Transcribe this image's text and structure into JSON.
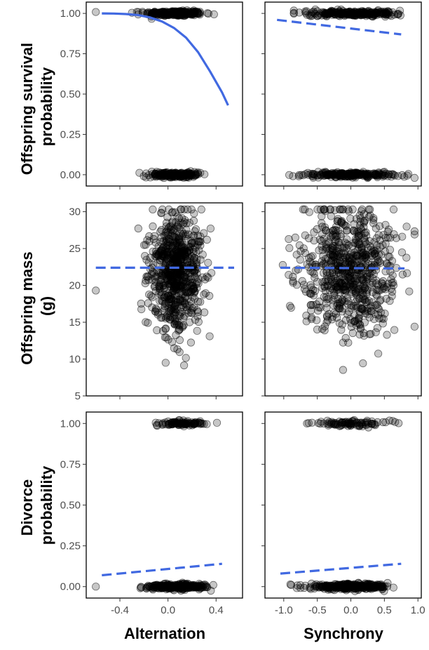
{
  "figure": {
    "row_titles": [
      [
        "Offspring survival",
        "probability"
      ],
      [
        "Offspring mass",
        "(g)"
      ],
      [
        "Divorce",
        "probability"
      ]
    ],
    "col_titles": [
      "Alternation",
      "Synchrony"
    ]
  },
  "chart_data": [
    {
      "type": "scatter",
      "row": 0,
      "col": 0,
      "xlabel": "",
      "ylabel": "Offspring survival probability",
      "xlim": [
        -0.68,
        0.62
      ],
      "ylim": [
        -0.07,
        1.07
      ],
      "xticks": [
        -0.4,
        0.0,
        0.4
      ],
      "xticklabels": [
        "-0.4",
        "0.0",
        "0.4"
      ],
      "show_xticklabels": false,
      "yticks": [
        0,
        0.25,
        0.5,
        0.75,
        1.0
      ],
      "yticklabels": [
        "0.00",
        "0.25",
        "0.50",
        "0.75",
        "1.00"
      ],
      "fit": {
        "style": "solid",
        "color": "#4169e1",
        "x": [
          -0.55,
          -0.45,
          -0.35,
          -0.25,
          -0.15,
          -0.05,
          0.05,
          0.15,
          0.25,
          0.35,
          0.45,
          0.5
        ],
        "y": [
          1.0,
          0.999,
          0.996,
          0.99,
          0.975,
          0.95,
          0.91,
          0.85,
          0.76,
          0.64,
          0.51,
          0.43
        ]
      },
      "points": {
        "note": "binary outcome (0/1), jittered",
        "clusters": [
          {
            "y": 1.0,
            "n": 260,
            "x_mean": 0.05,
            "x_sd": 0.12,
            "x_min": -0.3,
            "x_max": 0.5
          },
          {
            "y": 1.0,
            "n": 1,
            "x_fixed": -0.6
          },
          {
            "y": 0.0,
            "n": 200,
            "x_mean": 0.05,
            "x_sd": 0.1,
            "x_min": -0.28,
            "x_max": 0.48
          }
        ]
      }
    },
    {
      "type": "scatter",
      "row": 0,
      "col": 1,
      "xlabel": "",
      "ylabel": "",
      "xlim": [
        -1.28,
        1.05
      ],
      "ylim": [
        -0.07,
        1.07
      ],
      "xticks": [
        -1.0,
        -0.5,
        0.0,
        0.5,
        1.0
      ],
      "xticklabels": [
        "-1.0",
        "-0.5",
        "0.0",
        "0.5",
        "1.0"
      ],
      "show_xticklabels": false,
      "yticks": [
        0,
        0.25,
        0.5,
        0.75,
        1.0
      ],
      "yticklabels": [
        "0.00",
        "0.25",
        "0.50",
        "0.75",
        "1.00"
      ],
      "show_yticklabels": false,
      "fit": {
        "style": "dashed",
        "color": "#4169e1",
        "x": [
          -1.1,
          0.75
        ],
        "y": [
          0.96,
          0.87
        ]
      },
      "points": {
        "note": "binary outcome (0/1), jittered",
        "clusters": [
          {
            "y": 1.0,
            "n": 260,
            "x_mean": 0.0,
            "x_sd": 0.35,
            "x_min": -0.85,
            "x_max": 0.85
          },
          {
            "y": 0.0,
            "n": 220,
            "x_mean": 0.0,
            "x_sd": 0.35,
            "x_min": -1.2,
            "x_max": 0.95
          }
        ]
      }
    },
    {
      "type": "scatter",
      "row": 1,
      "col": 0,
      "xlabel": "",
      "ylabel": "Offspring mass (g)",
      "xlim": [
        -0.68,
        0.62
      ],
      "ylim": [
        5,
        31.2
      ],
      "xticks": [
        -0.4,
        0.0,
        0.4
      ],
      "xticklabels": [
        "-0.4",
        "0.0",
        "0.4"
      ],
      "show_xticklabels": false,
      "yticks": [
        5,
        10,
        15,
        20,
        25,
        30
      ],
      "yticklabels": [
        "5",
        "10",
        "15",
        "20",
        "25",
        "30"
      ],
      "fit": {
        "style": "dashed",
        "color": "#4169e1",
        "x": [
          -0.6,
          0.55
        ],
        "y": [
          22.4,
          22.4
        ]
      },
      "points": {
        "note": "continuous outcome",
        "clusters": [
          {
            "n": 700,
            "x_mean": 0.07,
            "x_sd": 0.11,
            "x_min": -0.35,
            "x_max": 0.5,
            "y_mean": 22.0,
            "y_sd": 4.0,
            "y_min": 6,
            "y_max": 30.3
          },
          {
            "n": 1,
            "x_fixed": -0.6,
            "y_fixed": 19.3
          }
        ]
      }
    },
    {
      "type": "scatter",
      "row": 1,
      "col": 1,
      "xlabel": "",
      "ylabel": "",
      "xlim": [
        -1.28,
        1.05
      ],
      "ylim": [
        5,
        31.2
      ],
      "xticks": [
        -1.0,
        -0.5,
        0.0,
        0.5,
        1.0
      ],
      "xticklabels": [
        "-1.0",
        "-0.5",
        "0.0",
        "0.5",
        "1.0"
      ],
      "show_xticklabels": false,
      "yticks": [
        5,
        10,
        15,
        20,
        25,
        30
      ],
      "yticklabels": [
        "5",
        "10",
        "15",
        "20",
        "25",
        "30"
      ],
      "show_yticklabels": false,
      "fit": {
        "style": "dashed",
        "color": "#4169e1",
        "x": [
          -1.05,
          0.8
        ],
        "y": [
          22.4,
          22.3
        ]
      },
      "points": {
        "note": "continuous outcome",
        "clusters": [
          {
            "n": 700,
            "x_mean": 0.0,
            "x_sd": 0.35,
            "x_min": -1.15,
            "x_max": 0.95,
            "y_mean": 22.0,
            "y_sd": 4.2,
            "y_min": 6,
            "y_max": 30.3
          }
        ]
      }
    },
    {
      "type": "scatter",
      "row": 2,
      "col": 0,
      "xlabel": "Alternation",
      "ylabel": "Divorce probability",
      "xlim": [
        -0.68,
        0.62
      ],
      "ylim": [
        -0.07,
        1.07
      ],
      "xticks": [
        -0.4,
        0.0,
        0.4
      ],
      "xticklabels": [
        "-0.4",
        "0.0",
        "0.4"
      ],
      "show_xticklabels": true,
      "yticks": [
        0,
        0.25,
        0.5,
        0.75,
        1.0
      ],
      "yticklabels": [
        "0.00",
        "0.25",
        "0.50",
        "0.75",
        "1.00"
      ],
      "fit": {
        "style": "dashed",
        "color": "#4169e1",
        "x": [
          -0.55,
          0.45
        ],
        "y": [
          0.07,
          0.14
        ]
      },
      "points": {
        "note": "binary outcome (0/1), jittered",
        "clusters": [
          {
            "y": 1.0,
            "n": 90,
            "x_mean": 0.1,
            "x_sd": 0.11,
            "x_min": -0.25,
            "x_max": 0.45
          },
          {
            "y": 0.0,
            "n": 300,
            "x_mean": 0.07,
            "x_sd": 0.12,
            "x_min": -0.3,
            "x_max": 0.5
          },
          {
            "y": 0.0,
            "n": 1,
            "x_fixed": -0.6
          }
        ]
      }
    },
    {
      "type": "scatter",
      "row": 2,
      "col": 1,
      "xlabel": "Synchrony",
      "ylabel": "",
      "xlim": [
        -1.28,
        1.05
      ],
      "ylim": [
        -0.07,
        1.07
      ],
      "xticks": [
        -1.0,
        -0.5,
        0.0,
        0.5,
        1.0
      ],
      "xticklabels": [
        "-1.0",
        "-0.5",
        "0.0",
        "0.5",
        "1.0"
      ],
      "show_xticklabels": true,
      "yticks": [
        0,
        0.25,
        0.5,
        0.75,
        1.0
      ],
      "yticklabels": [
        "0.00",
        "0.25",
        "0.50",
        "0.75",
        "1.00"
      ],
      "show_yticklabels": false,
      "fit": {
        "style": "dashed",
        "color": "#4169e1",
        "x": [
          -1.05,
          0.75
        ],
        "y": [
          0.08,
          0.14
        ]
      },
      "points": {
        "note": "binary outcome (0/1), jittered",
        "clusters": [
          {
            "y": 1.0,
            "n": 90,
            "x_mean": 0.0,
            "x_sd": 0.3,
            "x_min": -0.9,
            "x_max": 0.8
          },
          {
            "y": 0.0,
            "n": 300,
            "x_mean": 0.0,
            "x_sd": 0.3,
            "x_min": -1.05,
            "x_max": 0.95
          }
        ]
      }
    }
  ]
}
